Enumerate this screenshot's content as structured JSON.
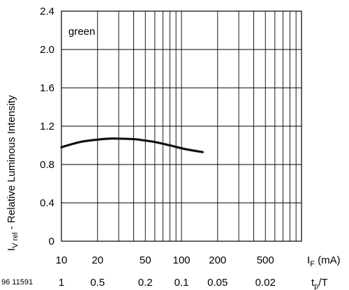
{
  "chart_data": {
    "type": "line",
    "series": [
      {
        "name": "green",
        "x": [
          10,
          12,
          15,
          20,
          25,
          30,
          40,
          50,
          60,
          80,
          100,
          120,
          150
        ],
        "y": [
          0.98,
          1.01,
          1.04,
          1.06,
          1.07,
          1.07,
          1.065,
          1.05,
          1.035,
          1.0,
          0.97,
          0.95,
          0.93
        ]
      }
    ],
    "xscale": "log",
    "xlim": [
      10,
      1000
    ],
    "ylim": [
      0,
      2.4
    ],
    "x_ticks": [
      10,
      20,
      50,
      100,
      200,
      500
    ],
    "x_tick_labels": [
      "10",
      "20",
      "50",
      "100",
      "200",
      "500"
    ],
    "x_minor_ticks": [
      30,
      40,
      60,
      70,
      80,
      90,
      300,
      400,
      600,
      700,
      800,
      900
    ],
    "y_ticks": [
      0,
      0.4,
      0.8,
      1.2,
      1.6,
      2.0,
      2.4
    ],
    "y_tick_labels": [
      "0",
      "0.4",
      "0.8",
      "1.2",
      "1.6",
      "2.0",
      "2.4"
    ],
    "xlabel": {
      "main": "I",
      "sub": "F",
      "rest": " (mA)"
    },
    "ylabel": {
      "main": "I",
      "sub": "V rel",
      "rest": " - Relative Luminous Intensity"
    },
    "x2_ticks": [
      10,
      20,
      50,
      100,
      200,
      500
    ],
    "x2_tick_labels": [
      "1",
      "0.5",
      "0.2",
      "0.1",
      "0.05",
      "0.02"
    ],
    "x2label": {
      "pre": "t",
      "sub": "p",
      "post": "/T"
    },
    "doc_number": "96 11591",
    "grid": true,
    "colors": {
      "curve": "#111111",
      "grid": "#000000"
    }
  }
}
